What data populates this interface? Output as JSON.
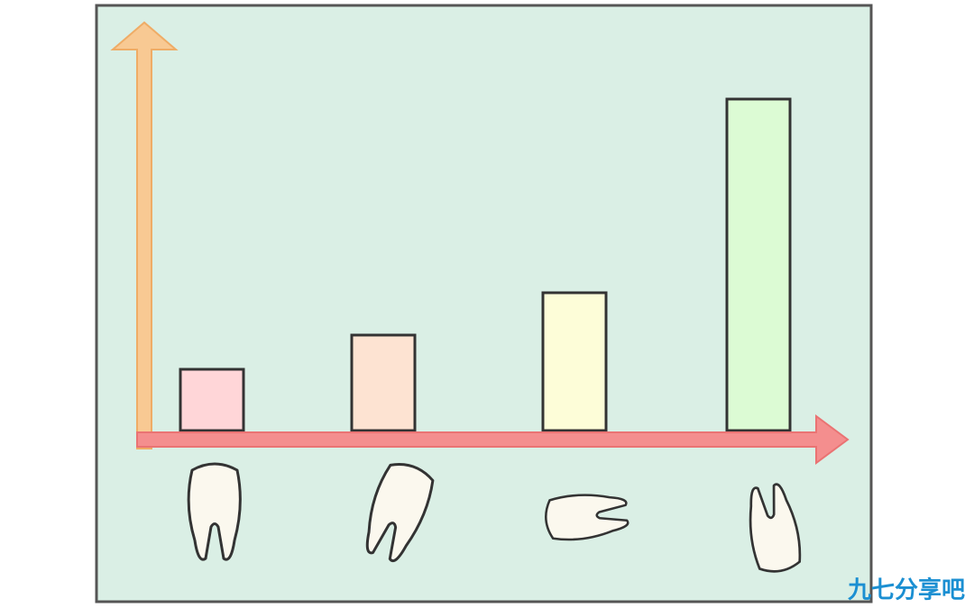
{
  "chart_data": {
    "type": "bar",
    "categories": [
      null,
      null,
      null,
      null
    ],
    "values": [
      68,
      106,
      153,
      368
    ],
    "colors": [
      "#ffd6d8",
      "#fde3d2",
      "#fdfdd8",
      "#dcfbd4"
    ],
    "ylim": [
      0,
      450
    ]
  },
  "watermark": "九七分享吧"
}
